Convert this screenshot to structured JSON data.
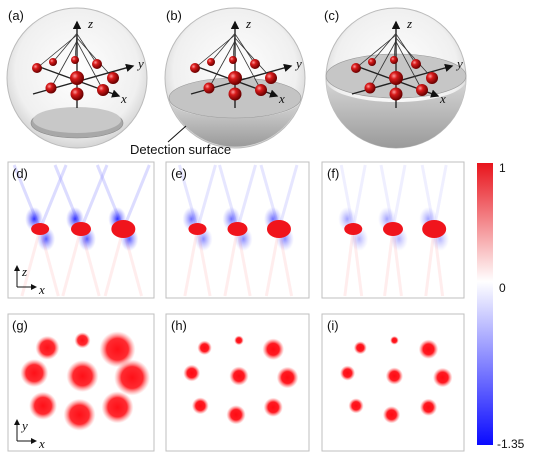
{
  "panel_labels": [
    "(a)",
    "(b)",
    "(c)",
    "(d)",
    "(e)",
    "(f)",
    "(g)",
    "(h)",
    "(i)"
  ],
  "axes": {
    "x": "x",
    "y": "y",
    "z": "z"
  },
  "annotation": "Detection surface",
  "colorbar": {
    "max_label": "1",
    "mid_label": "0",
    "min_label": "-1.35",
    "colors": {
      "positive": "#e8141c",
      "zero": "#ffffff",
      "negative": "#1a1aff"
    }
  },
  "colors": {
    "sphere": "#cc1010",
    "rod": "#222222",
    "bowl": "#b8b8b8",
    "frame": "#bfbfbf"
  }
}
